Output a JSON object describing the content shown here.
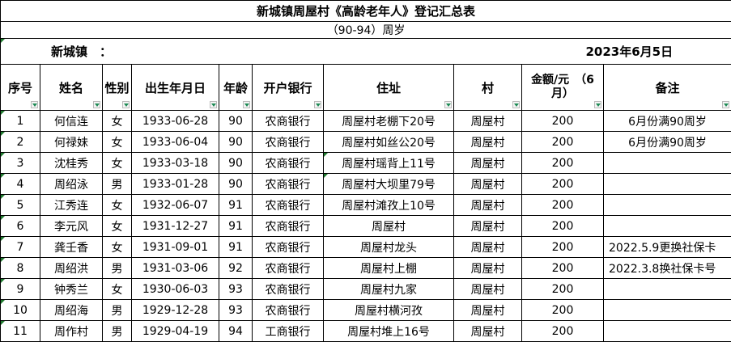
{
  "title": "新城镇周屋村《高龄老年人》登记汇总表",
  "subtitle": "（90-94）周岁",
  "town_label": "新城镇　：",
  "date": "2023年6月5日",
  "headers": [
    "序号",
    "姓名",
    "性别",
    "出生年月日",
    "年龄",
    "开户银行",
    "住址",
    "村",
    "金额/元　（6月）",
    "备注"
  ],
  "rows": [
    {
      "no": "1",
      "name": "何信连",
      "sex": "女",
      "birth": "1933-06-28",
      "age": "90",
      "bank": "农商银行",
      "addr": "周屋村老棚下20号",
      "village": "周屋村",
      "amount": "200",
      "note": "6月份满90周岁"
    },
    {
      "no": "2",
      "name": "何禄妹",
      "sex": "女",
      "birth": "1933-06-04",
      "age": "90",
      "bank": "农商银行",
      "addr": "周屋村如丝公20号",
      "village": "周屋村",
      "amount": "200",
      "note": "6月份满90周岁"
    },
    {
      "no": "3",
      "name": "沈桂秀",
      "sex": "女",
      "birth": "1933-03-18",
      "age": "90",
      "bank": "农商银行",
      "addr": "周屋村瑶背上11号",
      "village": "周屋村",
      "amount": "200",
      "note": ""
    },
    {
      "no": "4",
      "name": "周绍泳",
      "sex": "男",
      "birth": "1933-01-28",
      "age": "90",
      "bank": "农商银行",
      "addr": "周屋村大坝里79号",
      "village": "周屋村",
      "amount": "200",
      "note": ""
    },
    {
      "no": "5",
      "name": "江秀连",
      "sex": "女",
      "birth": "1932-06-07",
      "age": "91",
      "bank": "农商银行",
      "addr": "周屋村滩孜上10号",
      "village": "周屋村",
      "amount": "200",
      "note": ""
    },
    {
      "no": "6",
      "name": "李元风",
      "sex": "女",
      "birth": "1931-12-27",
      "age": "91",
      "bank": "农商银行",
      "addr": "周屋村",
      "village": "周屋村",
      "amount": "200",
      "note": ""
    },
    {
      "no": "7",
      "name": "龚壬香",
      "sex": "女",
      "birth": "1931-09-01",
      "age": "91",
      "bank": "农商银行",
      "addr": "周屋村龙头",
      "village": "周屋村",
      "amount": "200",
      "note": "2022.5.9更换社保卡"
    },
    {
      "no": "8",
      "name": "周绍洪",
      "sex": "男",
      "birth": "1931-03-06",
      "age": "92",
      "bank": "农商银行",
      "addr": "周屋村上棚",
      "village": "周屋村",
      "amount": "200",
      "note": "2022.3.8换社保卡号"
    },
    {
      "no": "9",
      "name": "钟秀兰",
      "sex": "女",
      "birth": "1930-06-03",
      "age": "93",
      "bank": "农商银行",
      "addr": "周屋村九家",
      "village": "周屋村",
      "amount": "200",
      "note": ""
    },
    {
      "no": "10",
      "name": "周绍海",
      "sex": "男",
      "birth": "1929-12-28",
      "age": "93",
      "bank": "农商银行",
      "addr": "周屋村横河孜",
      "village": "周屋村",
      "amount": "200",
      "note": ""
    },
    {
      "no": "11",
      "name": "周作村",
      "sex": "男",
      "birth": "1929-04-19",
      "age": "94",
      "bank": "工商银行",
      "addr": "周屋村堆上16号",
      "village": "周屋村",
      "amount": "200",
      "note": ""
    }
  ],
  "colors": {
    "filter_arrow": "#1e8a55",
    "error_triangle": "#1e7a2e"
  }
}
